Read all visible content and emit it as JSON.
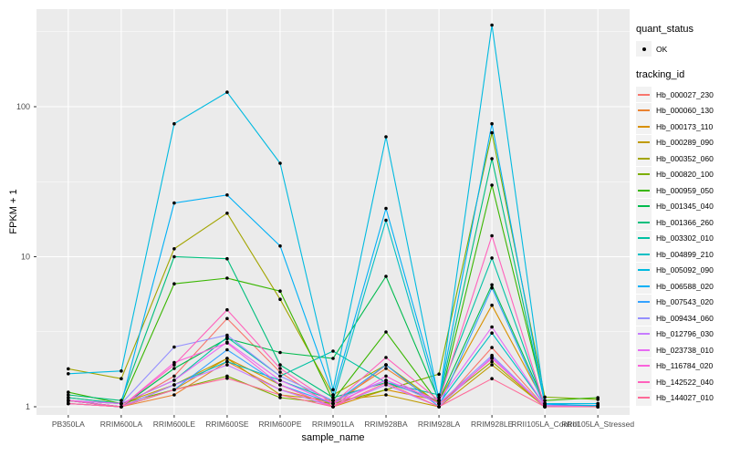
{
  "chart_data": {
    "type": "line",
    "title": "",
    "xlabel": "sample_name",
    "ylabel": "FPKM + 1",
    "y_scale": "log10",
    "grid": true,
    "legend_position": "right",
    "y_ticks": {
      "values": [
        1,
        10,
        100
      ],
      "labels": [
        "1",
        "10",
        "100"
      ]
    },
    "y_minor_ticks": [
      3.162,
      31.62,
      316.2
    ],
    "ylim": [
      0.88,
      450
    ],
    "categories": [
      "PB350LA",
      "RRIM600LA",
      "RRIM600LE",
      "RRIM600SE",
      "RRIM600PE",
      "RRIM901LA",
      "RRIM928BA",
      "RRIM928LA",
      "RRIM928LE",
      "RRII105LA_Control",
      "RRII105LA_Stressed"
    ],
    "legend": {
      "quant_status": {
        "title": "quant_status",
        "items": [
          {
            "label": "OK",
            "marker": "point",
            "color": "#000000"
          }
        ]
      },
      "tracking_id": {
        "title": "tracking_id"
      }
    },
    "series": [
      {
        "name": "Hb_000027_230",
        "color": "#F8766D",
        "values": [
          1.1,
          1.0,
          1.6,
          3.87,
          1.7,
          1.0,
          1.9,
          1.0,
          2.48,
          1.0,
          1.0
        ]
      },
      {
        "name": "Hb_000060_130",
        "color": "#EA8331",
        "values": [
          1.05,
          1.0,
          1.2,
          2.0,
          1.3,
          1.05,
          1.8,
          1.05,
          2.1,
          1.0,
          1.0
        ]
      },
      {
        "name": "Hb_000173_110",
        "color": "#D89000",
        "values": [
          1.1,
          1.0,
          1.3,
          2.1,
          1.4,
          1.0,
          1.3,
          1.1,
          4.75,
          1.05,
          1.0
        ]
      },
      {
        "name": "Hb_000289_090",
        "color": "#C09B00",
        "values": [
          1.15,
          1.05,
          1.4,
          2.1,
          1.2,
          1.1,
          1.2,
          1.0,
          1.9,
          1.0,
          1.0
        ]
      },
      {
        "name": "Hb_000352_060",
        "color": "#A3A500",
        "values": [
          1.79,
          1.54,
          11.3,
          19.5,
          5.2,
          1.2,
          1.9,
          1.05,
          2.0,
          1.0,
          1.0
        ]
      },
      {
        "name": "Hb_000820_100",
        "color": "#7CAE00",
        "values": [
          1.1,
          1.05,
          1.3,
          1.6,
          1.15,
          1.05,
          1.3,
          1.65,
          67.0,
          1.16,
          1.12
        ]
      },
      {
        "name": "Hb_000959_050",
        "color": "#39B600",
        "values": [
          1.25,
          1.05,
          6.6,
          7.2,
          5.9,
          1.1,
          3.15,
          1.05,
          30.0,
          1.1,
          1.15
        ]
      },
      {
        "name": "Hb_001345_040",
        "color": "#00BB4E",
        "values": [
          1.1,
          1.0,
          1.8,
          2.85,
          2.3,
          2.1,
          7.4,
          1.1,
          6.5,
          1.05,
          1.0
        ]
      },
      {
        "name": "Hb_001366_260",
        "color": "#00BF7D",
        "values": [
          1.2,
          1.1,
          10.0,
          9.7,
          1.9,
          1.15,
          1.45,
          1.1,
          45.0,
          1.05,
          1.05
        ]
      },
      {
        "name": "Hb_003302_010",
        "color": "#00C1A3",
        "values": [
          1.15,
          1.05,
          1.5,
          2.9,
          1.6,
          2.35,
          1.45,
          1.2,
          9.8,
          1.02,
          1.02
        ]
      },
      {
        "name": "Hb_004899_210",
        "color": "#00BFC4",
        "values": [
          1.1,
          1.0,
          1.4,
          2.0,
          1.5,
          1.1,
          17.5,
          1.05,
          3.1,
          1.02,
          1.0
        ]
      },
      {
        "name": "Hb_005092_090",
        "color": "#00BAE0",
        "values": [
          1.66,
          1.73,
          77.0,
          125.0,
          42.0,
          1.3,
          63.0,
          1.1,
          350.0,
          1.05,
          1.05
        ]
      },
      {
        "name": "Hb_006588_020",
        "color": "#00B0F6",
        "values": [
          1.1,
          1.05,
          22.8,
          25.8,
          11.8,
          1.2,
          21.0,
          1.15,
          77.0,
          1.04,
          1.02
        ]
      },
      {
        "name": "Hb_007543_020",
        "color": "#35A2FF",
        "values": [
          1.05,
          1.0,
          1.3,
          2.4,
          1.4,
          1.05,
          1.9,
          1.0,
          6.2,
          1.0,
          1.0
        ]
      },
      {
        "name": "Hb_009434_060",
        "color": "#9590FF",
        "values": [
          1.1,
          1.05,
          2.5,
          3.0,
          1.6,
          1.1,
          1.5,
          1.05,
          2.2,
          1.0,
          1.0
        ]
      },
      {
        "name": "Hb_012796_030",
        "color": "#C77CFF",
        "values": [
          1.05,
          1.0,
          1.4,
          1.9,
          1.3,
          1.0,
          1.4,
          1.0,
          2.15,
          1.0,
          1.0
        ]
      },
      {
        "name": "Hb_023738_010",
        "color": "#E76BF3",
        "values": [
          1.1,
          1.05,
          1.5,
          2.7,
          1.5,
          1.05,
          1.5,
          1.1,
          3.4,
          1.02,
          1.0
        ]
      },
      {
        "name": "Hb_116784_020",
        "color": "#FA62DB",
        "values": [
          1.05,
          1.0,
          1.97,
          2.66,
          1.4,
          1.0,
          1.6,
          1.05,
          2.1,
          1.0,
          1.0
        ]
      },
      {
        "name": "Hb_142522_040",
        "color": "#FF62BC",
        "values": [
          1.1,
          1.0,
          1.9,
          4.43,
          1.8,
          1.05,
          2.13,
          1.1,
          13.8,
          1.0,
          1.0
        ]
      },
      {
        "name": "Hb_144027_010",
        "color": "#FF6A98",
        "values": [
          1.05,
          1.0,
          1.3,
          1.55,
          1.2,
          1.0,
          1.44,
          1.0,
          1.54,
          1.0,
          1.0
        ]
      }
    ],
    "colors": {
      "panel_bg": "#EBEBEB",
      "grid": "#FFFFFF",
      "legend_key_bg": "#F2F2F2",
      "point": "#000000",
      "tick_label": "#4D4D4D",
      "tick_mark": "#333333"
    }
  }
}
